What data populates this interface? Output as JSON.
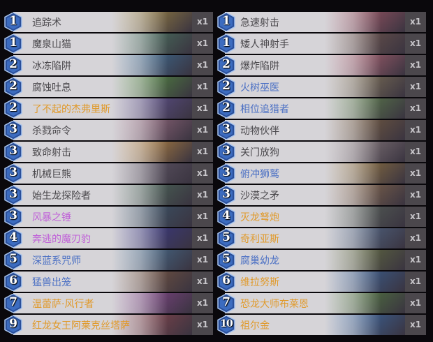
{
  "rarity_colors": {
    "common": "#4a484c",
    "rare": "#4a6fc4",
    "epic": "#c062d8",
    "legendary": "#e09a2c"
  },
  "left": [
    {
      "cost": "1",
      "name": "追踪术",
      "count": "x1",
      "rarity": "common",
      "art": "#b89a40"
    },
    {
      "cost": "1",
      "name": "魔泉山猫",
      "count": "x1",
      "rarity": "common",
      "art": "#4f8a6a"
    },
    {
      "cost": "2",
      "name": "冰冻陷阱",
      "count": "x1",
      "rarity": "common",
      "art": "#3d7fae"
    },
    {
      "cost": "2",
      "name": "腐蚀吐息",
      "count": "x1",
      "rarity": "common",
      "art": "#5aa840"
    },
    {
      "cost": "2",
      "name": "了不起的杰弗里斯",
      "count": "x1",
      "rarity": "legendary",
      "art": "#6a5aa8"
    },
    {
      "cost": "3",
      "name": "杀戮命令",
      "count": "x1",
      "rarity": "common",
      "art": "#b07890"
    },
    {
      "cost": "3",
      "name": "致命射击",
      "count": "x1",
      "rarity": "common",
      "art": "#e0a040"
    },
    {
      "cost": "3",
      "name": "机械巨熊",
      "count": "x1",
      "rarity": "common",
      "art": "#6a6070"
    },
    {
      "cost": "3",
      "name": "始生龙探险者",
      "count": "x1",
      "rarity": "common",
      "art": "#507860"
    },
    {
      "cost": "3",
      "name": "风暴之锤",
      "count": "x1",
      "rarity": "epic",
      "art": "#3a6078"
    },
    {
      "cost": "4",
      "name": "奔逃的魔刃豹",
      "count": "x1",
      "rarity": "epic",
      "art": "#3a3aa0"
    },
    {
      "cost": "5",
      "name": "深蓝系咒师",
      "count": "x1",
      "rarity": "rare",
      "art": "#4a80a8"
    },
    {
      "cost": "6",
      "name": "猛兽出笼",
      "count": "x1",
      "rarity": "rare",
      "art": "#8a6040"
    },
    {
      "cost": "7",
      "name": "温蕾萨·风行者",
      "count": "x1",
      "rarity": "legendary",
      "art": "#9a4aa0"
    },
    {
      "cost": "9",
      "name": "红龙女王阿莱克丝塔萨",
      "count": "x1",
      "rarity": "legendary",
      "art": "#a04a50"
    }
  ],
  "right": [
    {
      "cost": "1",
      "name": "急速射击",
      "count": "x1",
      "rarity": "common",
      "art": "#c06070"
    },
    {
      "cost": "1",
      "name": "矮人神射手",
      "count": "x1",
      "rarity": "common",
      "art": "#806050"
    },
    {
      "cost": "2",
      "name": "爆炸陷阱",
      "count": "x1",
      "rarity": "common",
      "art": "#d07080"
    },
    {
      "cost": "2",
      "name": "火树巫医",
      "count": "x1",
      "rarity": "rare",
      "art": "#9a8a60"
    },
    {
      "cost": "2",
      "name": "相位追猎者",
      "count": "x1",
      "rarity": "rare",
      "art": "#6a9a50"
    },
    {
      "cost": "3",
      "name": "动物伙伴",
      "count": "x1",
      "rarity": "common",
      "art": "#8a6a40"
    },
    {
      "cost": "3",
      "name": "关门放狗",
      "count": "x1",
      "rarity": "common",
      "art": "#a09090"
    },
    {
      "cost": "3",
      "name": "俯冲狮鹫",
      "count": "x1",
      "rarity": "rare",
      "art": "#b08a40"
    },
    {
      "cost": "3",
      "name": "沙漠之矛",
      "count": "x1",
      "rarity": "common",
      "art": "#a07a50"
    },
    {
      "cost": "4",
      "name": "灭龙弩炮",
      "count": "x1",
      "rarity": "legendary",
      "art": "#607060"
    },
    {
      "cost": "5",
      "name": "奇利亚斯",
      "count": "x1",
      "rarity": "legendary",
      "art": "#5a7aa0"
    },
    {
      "cost": "5",
      "name": "腐巢幼龙",
      "count": "x1",
      "rarity": "rare",
      "art": "#708040"
    },
    {
      "cost": "6",
      "name": "维拉努斯",
      "count": "x1",
      "rarity": "legendary",
      "art": "#3a70b0"
    },
    {
      "cost": "7",
      "name": "恐龙大师布莱恩",
      "count": "x1",
      "rarity": "legendary",
      "art": "#5a9040"
    },
    {
      "cost": "10",
      "name": "祖尔金",
      "count": "x1",
      "rarity": "legendary",
      "art": "#3a78c0"
    }
  ]
}
